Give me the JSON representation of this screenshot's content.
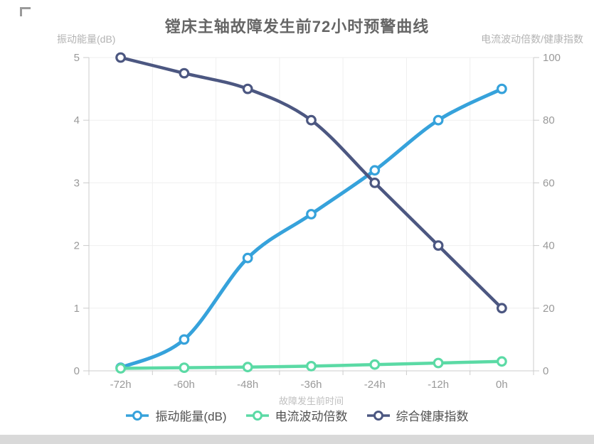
{
  "chart_data": {
    "type": "line",
    "title": "镗床主轴故障发生前72小时预警曲线",
    "categories": [
      "-72h",
      "-60h",
      "-48h",
      "-36h",
      "-24h",
      "-12h",
      "0h"
    ],
    "xlabel": "故障发生前时间",
    "y_left": {
      "name": "振动能量(dB)",
      "min": 0,
      "max": 5,
      "ticks": [
        0,
        1,
        2,
        3,
        4,
        5
      ]
    },
    "y_right": {
      "name": "电流波动倍数/健康指数",
      "min": 0,
      "max": 100,
      "ticks": [
        0,
        20,
        40,
        60,
        80,
        100
      ]
    },
    "grid": true,
    "legend_position": "bottom",
    "series": [
      {
        "name": "振动能量(dB)",
        "axis": "left",
        "color": "#36A2DB",
        "values": [
          0.05,
          0.5,
          1.8,
          2.5,
          3.2,
          4,
          4.5
        ]
      },
      {
        "name": "电流波动倍数",
        "axis": "right",
        "color": "#5BDAA5",
        "values": [
          0.8,
          1,
          1.2,
          1.5,
          2,
          2.5,
          3
        ]
      },
      {
        "name": "综合健康指数",
        "axis": "right",
        "color": "#4C5781",
        "values": [
          100,
          95,
          90,
          80,
          60,
          40,
          20
        ]
      }
    ],
    "style": {
      "axis_line_color": "#cccccc",
      "grid_color": "#efefef",
      "tick_label_color": "#999999",
      "bottom_bar_color": "#d9d9d9"
    }
  }
}
